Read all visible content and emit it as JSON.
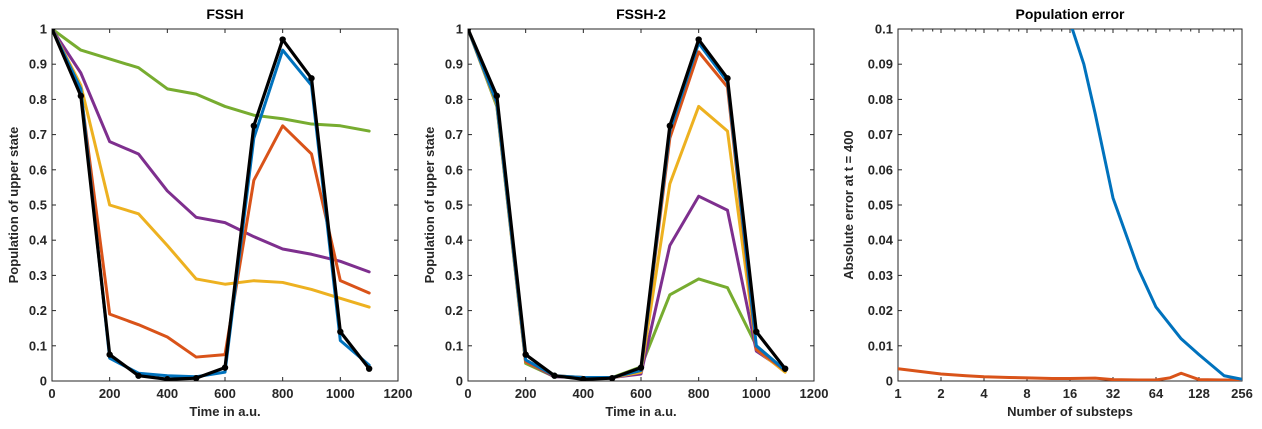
{
  "chart_data": [
    {
      "type": "line",
      "title": "FSSH",
      "xlabel": "Time in a.u.",
      "ylabel": "Population of upper state",
      "xlim": [
        0,
        1200
      ],
      "ylim": [
        0,
        1
      ],
      "xticks": [
        0,
        200,
        400,
        600,
        800,
        1000,
        1200
      ],
      "yticks": [
        0,
        0.1,
        0.2,
        0.3,
        0.4,
        0.5,
        0.6,
        0.7,
        0.8,
        0.9,
        1
      ],
      "ytick_labels": [
        "0",
        "0.1",
        "0.2",
        "0.3",
        "0.4",
        "0.5",
        "0.6",
        "0.7",
        "0.8",
        "0.9",
        "1"
      ],
      "grid": false,
      "x": [
        0,
        100,
        200,
        300,
        400,
        500,
        600,
        700,
        800,
        900,
        1000,
        1100
      ],
      "series": [
        {
          "color": "#000000",
          "markers": true,
          "values": [
            1.0,
            0.81,
            0.075,
            0.015,
            0.005,
            0.008,
            0.038,
            0.725,
            0.97,
            0.86,
            0.14,
            0.035
          ]
        },
        {
          "color": "#0072BD",
          "markers": false,
          "values": [
            1.0,
            0.83,
            0.065,
            0.022,
            0.015,
            0.012,
            0.025,
            0.69,
            0.94,
            0.84,
            0.115,
            0.045
          ]
        },
        {
          "color": "#D95319",
          "markers": false,
          "values": [
            1.0,
            0.82,
            0.19,
            0.16,
            0.125,
            0.068,
            0.075,
            0.57,
            0.725,
            0.645,
            0.285,
            0.25
          ]
        },
        {
          "color": "#EDB120",
          "markers": false,
          "values": [
            1.0,
            0.84,
            0.5,
            0.475,
            0.385,
            0.29,
            0.275,
            0.285,
            0.28,
            0.26,
            0.235,
            0.21
          ]
        },
        {
          "color": "#7E2F8E",
          "markers": false,
          "values": [
            1.0,
            0.875,
            0.68,
            0.645,
            0.54,
            0.465,
            0.45,
            0.41,
            0.375,
            0.36,
            0.34,
            0.31
          ]
        },
        {
          "color": "#77AC30",
          "markers": false,
          "values": [
            1.0,
            0.94,
            0.915,
            0.89,
            0.83,
            0.815,
            0.78,
            0.755,
            0.745,
            0.73,
            0.725,
            0.71
          ]
        }
      ]
    },
    {
      "type": "line",
      "title": "FSSH-2",
      "xlabel": "Time in a.u.",
      "ylabel": "Population of upper state",
      "xlim": [
        0,
        1200
      ],
      "ylim": [
        0,
        1
      ],
      "xticks": [
        0,
        200,
        400,
        600,
        800,
        1000,
        1200
      ],
      "yticks": [
        0,
        0.1,
        0.2,
        0.3,
        0.4,
        0.5,
        0.6,
        0.7,
        0.8,
        0.9,
        1
      ],
      "ytick_labels": [
        "0",
        "0.1",
        "0.2",
        "0.3",
        "0.4",
        "0.5",
        "0.6",
        "0.7",
        "0.8",
        "0.9",
        "1"
      ],
      "grid": false,
      "x": [
        0,
        100,
        200,
        300,
        400,
        500,
        600,
        700,
        800,
        900,
        1000,
        1100
      ],
      "series": [
        {
          "color": "#000000",
          "markers": true,
          "values": [
            1.0,
            0.81,
            0.075,
            0.015,
            0.005,
            0.008,
            0.038,
            0.725,
            0.97,
            0.86,
            0.14,
            0.035
          ]
        },
        {
          "color": "#0072BD",
          "markers": false,
          "values": [
            1.0,
            0.79,
            0.06,
            0.015,
            0.01,
            0.01,
            0.03,
            0.71,
            0.96,
            0.85,
            0.1,
            0.03
          ]
        },
        {
          "color": "#D95319",
          "markers": false,
          "values": [
            1.0,
            0.79,
            0.055,
            0.015,
            0.01,
            0.01,
            0.03,
            0.69,
            0.935,
            0.835,
            0.09,
            0.03
          ]
        },
        {
          "color": "#EDB120",
          "markers": false,
          "values": [
            1.0,
            0.785,
            0.055,
            0.015,
            0.01,
            0.01,
            0.025,
            0.56,
            0.78,
            0.71,
            0.09,
            0.025
          ]
        },
        {
          "color": "#7E2F8E",
          "markers": false,
          "values": [
            1.0,
            0.785,
            0.055,
            0.012,
            0.01,
            0.01,
            0.02,
            0.385,
            0.525,
            0.485,
            0.085,
            0.03
          ]
        },
        {
          "color": "#77AC30",
          "markers": false,
          "values": [
            1.0,
            0.78,
            0.05,
            0.012,
            0.01,
            0.01,
            0.04,
            0.245,
            0.29,
            0.265,
            0.1,
            0.03
          ]
        }
      ]
    },
    {
      "type": "line",
      "title": "Population error",
      "xlabel": "Number of substeps",
      "ylabel": "Absolute error at t = 400",
      "xscale": "log2",
      "xlim": [
        1,
        256
      ],
      "ylim": [
        0,
        0.1
      ],
      "xticks": [
        1,
        2,
        4,
        8,
        16,
        32,
        64,
        128,
        256
      ],
      "yticks": [
        0,
        0.01,
        0.02,
        0.03,
        0.04,
        0.05,
        0.06,
        0.07,
        0.08,
        0.09,
        0.1
      ],
      "ytick_labels": [
        "0",
        "0.01",
        "0.02",
        "0.03",
        "0.04",
        "0.05",
        "0.06",
        "0.07",
        "0.08",
        "0.09",
        "0.1"
      ],
      "grid": false,
      "series": [
        {
          "color": "#0072BD",
          "markers": false,
          "x": [
            16,
            20,
            24,
            32,
            48,
            64,
            96,
            128,
            192,
            256
          ],
          "values": [
            0.102,
            0.09,
            0.076,
            0.052,
            0.032,
            0.021,
            0.012,
            0.0075,
            0.0015,
            0.0005
          ]
        },
        {
          "color": "#D95319",
          "markers": false,
          "x": [
            1,
            2,
            3,
            4,
            6,
            8,
            12,
            16,
            24,
            32,
            48,
            64,
            80,
            96,
            128,
            192,
            256
          ],
          "values": [
            0.0035,
            0.002,
            0.0015,
            0.0012,
            0.001,
            0.0009,
            0.0007,
            0.0007,
            0.0008,
            0.0004,
            0.0003,
            0.0003,
            0.0009,
            0.0022,
            0.0004,
            0.0003,
            0.0003
          ]
        }
      ]
    }
  ]
}
